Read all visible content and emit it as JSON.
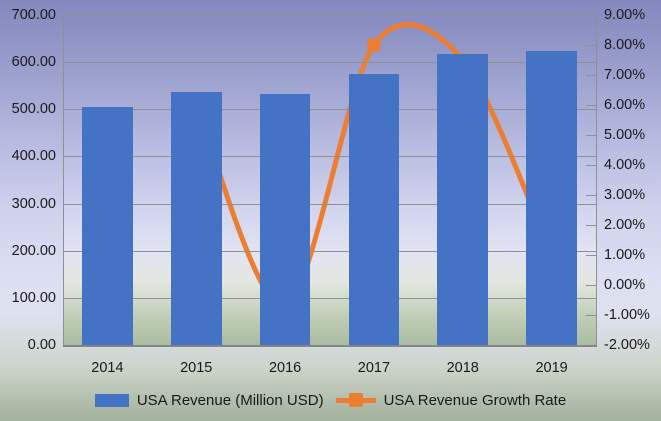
{
  "chart_data": {
    "type": "combo",
    "title": "",
    "categories": [
      "2014",
      "2015",
      "2016",
      "2017",
      "2018",
      "2019"
    ],
    "series": [
      {
        "name": "USA Revenue (Million USD)",
        "type": "bar",
        "axis": "left",
        "color": "#4472C4",
        "values": [
          505,
          536,
          532,
          575,
          618,
          624
        ]
      },
      {
        "name": "USA Revenue Growth Rate",
        "type": "line",
        "axis": "right",
        "color": "#ED7D31",
        "values": [
          null,
          6.0,
          -0.7,
          8.0,
          7.5,
          1.0
        ]
      }
    ],
    "left_axis": {
      "min": 0,
      "max": 700,
      "step": 100,
      "tick_labels": [
        "700.00",
        "600.00",
        "500.00",
        "400.00",
        "300.00",
        "200.00",
        "100.00",
        "0.00"
      ]
    },
    "right_axis": {
      "min": -2,
      "max": 9,
      "step": 1,
      "tick_labels": [
        "9.00%",
        "8.00%",
        "7.00%",
        "6.00%",
        "5.00%",
        "4.00%",
        "3.00%",
        "2.00%",
        "1.00%",
        "0.00%",
        "-1.00%",
        "-2.00%"
      ]
    },
    "grid": true,
    "legend_position": "bottom"
  },
  "colors": {
    "bar": "#4472C4",
    "line": "#ED7D31",
    "gridline": "#8f9096",
    "axis_text": "#1a1a1a"
  }
}
